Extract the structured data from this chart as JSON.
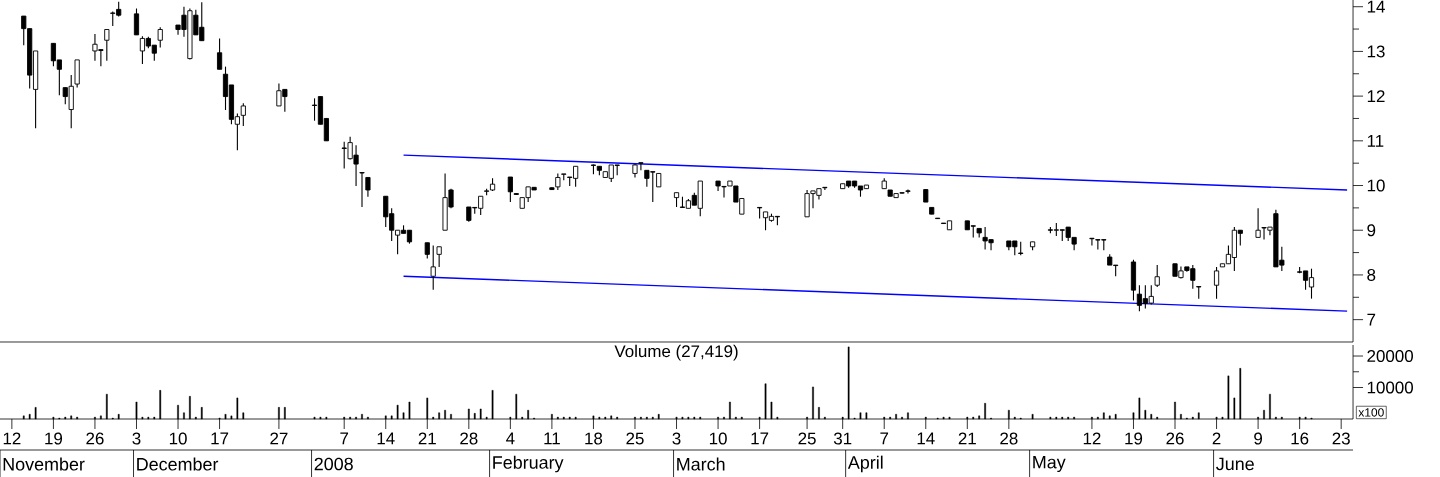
{
  "chart_data": [
    {
      "type": "candlestick",
      "x": [
        "2007-11-14",
        "2007-11-15",
        "2007-11-16",
        "2007-11-19",
        "2007-11-20",
        "2007-11-21",
        "2007-11-22",
        "2007-11-23",
        "2007-11-26",
        "2007-11-27",
        "2007-11-28",
        "2007-11-29",
        "2007-11-30",
        "2007-12-03",
        "2007-12-04",
        "2007-12-05",
        "2007-12-06",
        "2007-12-07",
        "2007-12-10",
        "2007-12-11",
        "2007-12-12",
        "2007-12-13",
        "2007-12-14",
        "2007-12-17",
        "2007-12-18",
        "2007-12-19",
        "2007-12-20",
        "2007-12-21",
        "2007-12-27",
        "2007-12-28",
        "2008-01-02",
        "2008-01-03",
        "2008-01-04",
        "2008-01-07",
        "2008-01-08",
        "2008-01-09",
        "2008-01-10",
        "2008-01-11",
        "2008-01-14",
        "2008-01-15",
        "2008-01-16",
        "2008-01-17",
        "2008-01-18",
        "2008-01-21",
        "2008-01-22",
        "2008-01-23",
        "2008-01-24",
        "2008-01-25",
        "2008-01-28",
        "2008-01-29",
        "2008-01-30",
        "2008-01-31",
        "2008-02-01",
        "2008-02-04",
        "2008-02-05",
        "2008-02-06",
        "2008-02-07",
        "2008-02-08",
        "2008-02-11",
        "2008-02-12",
        "2008-02-13",
        "2008-02-14",
        "2008-02-15",
        "2008-02-18",
        "2008-02-19",
        "2008-02-20",
        "2008-02-21",
        "2008-02-22",
        "2008-02-25",
        "2008-02-26",
        "2008-02-27",
        "2008-02-28",
        "2008-02-29",
        "2008-03-03",
        "2008-03-04",
        "2008-03-05",
        "2008-03-06",
        "2008-03-07",
        "2008-03-10",
        "2008-03-11",
        "2008-03-12",
        "2008-03-13",
        "2008-03-14",
        "2008-03-17",
        "2008-03-18",
        "2008-03-19",
        "2008-03-20",
        "2008-03-25",
        "2008-03-26",
        "2008-03-27",
        "2008-03-28",
        "2008-03-31",
        "2008-04-01",
        "2008-04-02",
        "2008-04-03",
        "2008-04-04",
        "2008-04-07",
        "2008-04-08",
        "2008-04-09",
        "2008-04-10",
        "2008-04-11",
        "2008-04-14",
        "2008-04-15",
        "2008-04-16",
        "2008-04-17",
        "2008-04-18",
        "2008-04-21",
        "2008-04-22",
        "2008-04-23",
        "2008-04-24",
        "2008-04-25",
        "2008-04-28",
        "2008-04-29",
        "2008-04-30",
        "2008-05-02",
        "2008-05-05",
        "2008-05-06",
        "2008-05-07",
        "2008-05-08",
        "2008-05-09",
        "2008-05-12",
        "2008-05-13",
        "2008-05-14",
        "2008-05-15",
        "2008-05-16",
        "2008-05-19",
        "2008-05-20",
        "2008-05-21",
        "2008-05-22",
        "2008-05-23",
        "2008-05-26",
        "2008-05-27",
        "2008-05-28",
        "2008-05-29",
        "2008-05-30",
        "2008-06-02",
        "2008-06-03",
        "2008-06-04",
        "2008-06-05",
        "2008-06-06",
        "2008-06-09",
        "2008-06-10",
        "2008-06-11",
        "2008-06-12",
        "2008-06-13",
        "2008-06-16",
        "2008-06-17",
        "2008-06-18"
      ],
      "ohlc": [
        [
          13.79,
          13.79,
          13.14,
          13.51
        ],
        [
          13.51,
          13.51,
          12.17,
          12.47
        ],
        [
          12.15,
          13.01,
          11.28,
          13.01
        ],
        [
          13.18,
          13.18,
          12.67,
          12.79
        ],
        [
          12.81,
          12.81,
          12.02,
          12.6
        ],
        [
          12.19,
          12.19,
          11.82,
          11.99
        ],
        [
          11.7,
          12.47,
          11.28,
          12.22
        ],
        [
          12.27,
          12.81,
          12.19,
          12.81
        ],
        [
          13.01,
          13.39,
          12.79,
          13.16
        ],
        [
          13.04,
          13.04,
          12.67,
          13.02
        ],
        [
          13.25,
          13.49,
          12.79,
          13.49
        ],
        [
          13.85,
          13.89,
          13.57,
          13.86
        ],
        [
          13.94,
          14.11,
          13.78,
          13.81
        ],
        [
          13.84,
          13.96,
          13.37,
          13.37
        ],
        [
          13.01,
          13.34,
          12.72,
          13.29
        ],
        [
          13.29,
          13.33,
          13.07,
          13.12
        ],
        [
          13.14,
          13.14,
          12.79,
          12.96
        ],
        [
          13.25,
          13.54,
          13.09,
          13.49
        ],
        [
          13.59,
          13.59,
          13.37,
          13.49
        ],
        [
          13.81,
          14.0,
          13.33,
          13.49
        ],
        [
          12.84,
          13.96,
          12.82,
          13.91
        ],
        [
          13.81,
          13.93,
          13.37,
          13.37
        ],
        [
          13.54,
          14.1,
          13.24,
          13.24
        ],
        [
          12.97,
          13.29,
          12.6,
          12.6
        ],
        [
          12.49,
          12.66,
          11.69,
          11.99
        ],
        [
          12.25,
          12.25,
          11.37,
          11.48
        ],
        [
          11.37,
          11.61,
          10.79,
          11.54
        ],
        [
          11.57,
          11.84,
          11.33,
          11.78
        ],
        [
          11.78,
          12.28,
          11.78,
          12.12
        ],
        [
          12.15,
          12.15,
          11.65,
          11.99
        ],
        [
          11.8,
          11.95,
          11.45,
          11.79
        ],
        [
          11.99,
          11.99,
          11.37,
          11.37
        ],
        [
          11.5,
          11.5,
          11.0,
          11.0
        ],
        [
          10.84,
          10.98,
          10.38,
          10.83
        ],
        [
          10.6,
          11.09,
          10.58,
          10.96
        ],
        [
          10.68,
          10.9,
          9.99,
          10.48
        ],
        [
          10.29,
          10.29,
          9.52,
          10.28
        ],
        [
          10.18,
          10.18,
          9.75,
          9.9
        ],
        [
          9.76,
          9.76,
          9.07,
          9.3
        ],
        [
          9.37,
          9.49,
          8.76,
          9.0
        ],
        [
          8.89,
          9.0,
          8.46,
          9.0
        ],
        [
          9.0,
          9.11,
          8.93,
          8.93
        ],
        [
          9.0,
          9.0,
          8.7,
          8.74
        ],
        [
          8.72,
          8.72,
          8.37,
          8.46
        ],
        [
          7.97,
          8.66,
          7.67,
          8.18
        ],
        [
          8.46,
          8.63,
          8.18,
          8.63
        ],
        [
          9.0,
          10.27,
          9.0,
          9.73
        ],
        [
          9.9,
          9.93,
          9.49,
          9.52
        ],
        [
          9.52,
          9.52,
          9.19,
          9.22
        ],
        [
          9.51,
          9.52,
          9.37,
          9.5
        ],
        [
          9.49,
          9.76,
          9.34,
          9.76
        ],
        [
          9.87,
          9.93,
          9.78,
          9.88
        ],
        [
          9.9,
          10.16,
          9.88,
          10.03
        ],
        [
          10.19,
          10.19,
          9.63,
          9.86
        ],
        [
          9.82,
          9.83,
          9.79,
          9.8
        ],
        [
          9.49,
          9.73,
          9.49,
          9.73
        ],
        [
          9.73,
          9.97,
          9.63,
          9.97
        ],
        [
          9.96,
          9.96,
          9.9,
          9.9
        ],
        [
          9.95,
          9.96,
          9.9,
          9.91
        ],
        [
          9.97,
          10.27,
          9.9,
          10.18
        ],
        [
          10.25,
          10.26,
          10.12,
          10.26
        ],
        [
          10.19,
          10.19,
          9.99,
          10.18
        ],
        [
          10.16,
          10.43,
          9.97,
          10.43
        ],
        [
          10.46,
          10.47,
          10.25,
          10.45
        ],
        [
          10.43,
          10.43,
          10.23,
          10.34
        ],
        [
          10.18,
          10.31,
          10.18,
          10.31
        ],
        [
          10.16,
          10.46,
          10.08,
          10.46
        ],
        [
          10.46,
          10.46,
          10.23,
          10.45
        ],
        [
          10.27,
          10.48,
          10.18,
          10.46
        ],
        [
          10.51,
          10.51,
          10.34,
          10.5
        ],
        [
          10.34,
          10.34,
          9.97,
          10.16
        ],
        [
          10.31,
          10.31,
          9.63,
          10.3
        ],
        [
          9.97,
          10.27,
          9.97,
          10.27
        ],
        [
          9.73,
          9.84,
          9.52,
          9.84
        ],
        [
          9.52,
          9.75,
          9.51,
          9.51
        ],
        [
          9.49,
          9.7,
          9.49,
          9.66
        ],
        [
          9.78,
          9.84,
          9.56,
          9.56
        ],
        [
          9.49,
          10.1,
          9.31,
          10.1
        ],
        [
          10.1,
          10.1,
          9.88,
          9.99
        ],
        [
          9.98,
          9.98,
          9.73,
          9.97
        ],
        [
          9.99,
          10.1,
          9.99,
          10.1
        ],
        [
          9.99,
          9.99,
          9.63,
          9.63
        ],
        [
          9.36,
          9.71,
          9.36,
          9.71
        ],
        [
          9.51,
          9.51,
          9.26,
          9.5
        ],
        [
          9.28,
          9.41,
          9.0,
          9.41
        ],
        [
          9.22,
          9.37,
          9.19,
          9.31
        ],
        [
          9.31,
          9.31,
          9.11,
          9.3
        ],
        [
          9.3,
          9.9,
          9.3,
          9.82
        ],
        [
          9.82,
          9.88,
          9.49,
          9.88
        ],
        [
          9.78,
          9.93,
          9.69,
          9.93
        ],
        [
          9.96,
          9.96,
          9.9,
          9.95
        ],
        [
          9.93,
          10.04,
          9.93,
          10.04
        ],
        [
          10.1,
          10.1,
          9.95,
          9.99
        ],
        [
          10.1,
          10.1,
          9.95,
          9.99
        ],
        [
          9.99,
          9.99,
          9.75,
          9.9
        ],
        [
          9.93,
          10.01,
          9.93,
          10.01
        ],
        [
          9.93,
          10.16,
          9.93,
          10.1
        ],
        [
          9.9,
          9.9,
          9.76,
          9.76
        ],
        [
          9.73,
          9.82,
          9.73,
          9.82
        ],
        [
          9.84,
          9.84,
          9.82,
          9.83
        ],
        [
          9.88,
          9.91,
          9.82,
          9.87
        ],
        [
          9.91,
          9.91,
          9.63,
          9.63
        ],
        [
          9.51,
          9.51,
          9.36,
          9.36
        ],
        [
          9.27,
          9.27,
          9.25,
          9.26
        ],
        [
          9.16,
          9.16,
          9.14,
          9.15
        ],
        [
          9.01,
          9.21,
          9.01,
          9.21
        ],
        [
          9.21,
          9.21,
          9.01,
          9.01
        ],
        [
          9.1,
          9.1,
          8.84,
          9.09
        ],
        [
          9.04,
          9.04,
          8.84,
          8.94
        ],
        [
          8.84,
          9.07,
          8.57,
          8.76
        ],
        [
          8.79,
          8.79,
          8.55,
          8.72
        ],
        [
          8.76,
          8.76,
          8.55,
          8.63
        ],
        [
          8.76,
          8.76,
          8.44,
          8.63
        ],
        [
          8.49,
          8.74,
          8.44,
          8.48
        ],
        [
          8.63,
          8.74,
          8.55,
          8.74
        ],
        [
          9.01,
          9.07,
          8.93,
          9.0
        ],
        [
          9.0,
          9.16,
          8.87,
          9.01
        ],
        [
          9.01,
          9.01,
          8.76,
          9.0
        ],
        [
          9.07,
          9.07,
          8.76,
          8.84
        ],
        [
          8.84,
          8.84,
          8.55,
          8.69
        ],
        [
          8.82,
          8.82,
          8.66,
          8.81
        ],
        [
          8.79,
          8.79,
          8.57,
          8.78
        ],
        [
          8.79,
          8.79,
          8.55,
          8.78
        ],
        [
          8.4,
          8.46,
          8.22,
          8.22
        ],
        [
          8.22,
          8.22,
          7.97,
          8.21
        ],
        [
          8.29,
          8.34,
          7.43,
          7.66
        ],
        [
          7.57,
          7.77,
          7.19,
          7.32
        ],
        [
          7.47,
          7.77,
          7.25,
          7.36
        ],
        [
          7.37,
          7.77,
          7.34,
          7.52
        ],
        [
          7.77,
          8.22,
          7.73,
          7.96
        ],
        [
          8.25,
          8.25,
          7.97,
          7.97
        ],
        [
          7.94,
          8.19,
          7.92,
          8.09
        ],
        [
          8.18,
          8.18,
          8.07,
          8.1
        ],
        [
          8.14,
          8.22,
          7.69,
          7.88
        ],
        [
          7.74,
          7.74,
          7.47,
          7.73
        ],
        [
          7.77,
          8.18,
          7.47,
          8.09
        ],
        [
          8.18,
          8.25,
          8.18,
          8.25
        ],
        [
          8.25,
          8.66,
          8.25,
          8.46
        ],
        [
          8.39,
          9.07,
          8.09,
          9.0
        ],
        [
          9.0,
          9.0,
          8.66,
          8.93
        ],
        [
          8.84,
          9.49,
          8.84,
          9.0
        ],
        [
          9.06,
          9.06,
          8.79,
          9.05
        ],
        [
          9.0,
          9.07,
          8.89,
          9.07
        ],
        [
          9.37,
          9.46,
          8.18,
          8.18
        ],
        [
          8.33,
          8.63,
          8.09,
          8.22
        ],
        [
          8.07,
          8.18,
          8.04,
          8.06
        ],
        [
          8.09,
          8.09,
          7.67,
          7.88
        ],
        [
          7.73,
          8.14,
          7.47,
          7.94
        ]
      ],
      "series": [
        {
          "type": "line",
          "color": "#0000ff",
          "x": [
            "2008-01-17",
            "2008-06-24"
          ],
          "values": [
            10.68,
            9.9
          ]
        },
        {
          "type": "line",
          "color": "#0000ff",
          "x": [
            "2008-01-17",
            "2008-06-24"
          ],
          "values": [
            7.97,
            7.19
          ]
        }
      ],
      "xlim": [
        "2007-11-10",
        "2008-06-25"
      ],
      "ylim": [
        6.5,
        14.15
      ],
      "yticks": [
        7,
        8,
        9,
        10,
        11,
        12,
        13,
        14
      ],
      "tick_labels": "y"
    },
    {
      "type": "bar",
      "title": "Volume (27,419)",
      "color": "#000000",
      "x": [
        "2007-11-14",
        "2007-11-15",
        "2007-11-16",
        "2007-11-19",
        "2007-11-20",
        "2007-11-21",
        "2007-11-22",
        "2007-11-23",
        "2007-11-26",
        "2007-11-27",
        "2007-11-28",
        "2007-11-29",
        "2007-11-30",
        "2007-12-03",
        "2007-12-04",
        "2007-12-05",
        "2007-12-06",
        "2007-12-07",
        "2007-12-10",
        "2007-12-11",
        "2007-12-12",
        "2007-12-13",
        "2007-12-14",
        "2007-12-17",
        "2007-12-18",
        "2007-12-19",
        "2007-12-20",
        "2007-12-21",
        "2007-12-27",
        "2007-12-28",
        "2008-01-02",
        "2008-01-03",
        "2008-01-04",
        "2008-01-07",
        "2008-01-08",
        "2008-01-09",
        "2008-01-10",
        "2008-01-11",
        "2008-01-14",
        "2008-01-15",
        "2008-01-16",
        "2008-01-17",
        "2008-01-18",
        "2008-01-21",
        "2008-01-22",
        "2008-01-23",
        "2008-01-24",
        "2008-01-25",
        "2008-01-28",
        "2008-01-29",
        "2008-01-30",
        "2008-01-31",
        "2008-02-01",
        "2008-02-04",
        "2008-02-05",
        "2008-02-06",
        "2008-02-07",
        "2008-02-08",
        "2008-02-11",
        "2008-02-12",
        "2008-02-13",
        "2008-02-14",
        "2008-02-15",
        "2008-02-18",
        "2008-02-19",
        "2008-02-20",
        "2008-02-21",
        "2008-02-22",
        "2008-02-25",
        "2008-02-26",
        "2008-02-27",
        "2008-02-28",
        "2008-02-29",
        "2008-03-03",
        "2008-03-04",
        "2008-03-05",
        "2008-03-06",
        "2008-03-07",
        "2008-03-10",
        "2008-03-11",
        "2008-03-12",
        "2008-03-13",
        "2008-03-14",
        "2008-03-17",
        "2008-03-18",
        "2008-03-19",
        "2008-03-20",
        "2008-03-25",
        "2008-03-26",
        "2008-03-27",
        "2008-03-28",
        "2008-03-31",
        "2008-04-01",
        "2008-04-02",
        "2008-04-03",
        "2008-04-04",
        "2008-04-07",
        "2008-04-08",
        "2008-04-09",
        "2008-04-10",
        "2008-04-11",
        "2008-04-14",
        "2008-04-15",
        "2008-04-16",
        "2008-04-17",
        "2008-04-18",
        "2008-04-21",
        "2008-04-22",
        "2008-04-23",
        "2008-04-24",
        "2008-04-25",
        "2008-04-28",
        "2008-04-29",
        "2008-04-30",
        "2008-05-02",
        "2008-05-05",
        "2008-05-06",
        "2008-05-07",
        "2008-05-08",
        "2008-05-09",
        "2008-05-12",
        "2008-05-13",
        "2008-05-14",
        "2008-05-15",
        "2008-05-16",
        "2008-05-19",
        "2008-05-20",
        "2008-05-21",
        "2008-05-22",
        "2008-05-23",
        "2008-05-26",
        "2008-05-27",
        "2008-05-28",
        "2008-05-29",
        "2008-05-30",
        "2008-06-02",
        "2008-06-03",
        "2008-06-04",
        "2008-06-05",
        "2008-06-06",
        "2008-06-09",
        "2008-06-10",
        "2008-06-11",
        "2008-06-12",
        "2008-06-13",
        "2008-06-16",
        "2008-06-17",
        "2008-06-18"
      ],
      "values": [
        1000,
        1500,
        3700,
        600,
        300,
        600,
        1000,
        600,
        600,
        1000,
        7900,
        300,
        1500,
        5400,
        600,
        600,
        600,
        9100,
        4400,
        2000,
        7200,
        600,
        3700,
        300,
        1500,
        1000,
        6700,
        2000,
        3700,
        3700,
        600,
        600,
        600,
        600,
        600,
        600,
        1500,
        600,
        1000,
        1000,
        4400,
        2000,
        5400,
        6700,
        600,
        2000,
        2800,
        1500,
        3200,
        1800,
        3200,
        600,
        9100,
        600,
        7900,
        600,
        2800,
        300,
        1500,
        600,
        600,
        600,
        600,
        1000,
        600,
        600,
        1000,
        600,
        600,
        600,
        600,
        600,
        1500,
        600,
        600,
        600,
        600,
        600,
        600,
        600,
        5400,
        600,
        600,
        600,
        11200,
        5400,
        600,
        600,
        10200,
        3700,
        600,
        600,
        22900,
        300,
        2000,
        2000,
        600,
        600,
        1500,
        600,
        2000,
        600,
        null,
        300,
        600,
        600,
        600,
        600,
        1000,
        5000,
        300,
        2800,
        600,
        300,
        1500,
        600,
        600,
        600,
        600,
        600,
        600,
        600,
        2000,
        1000,
        1500,
        2000,
        6700,
        2800,
        1500,
        600,
        5400,
        1500,
        300,
        600,
        2000,
        600,
        600,
        13700,
        6700,
        16100,
        600,
        2800,
        7900,
        600,
        600,
        600,
        600,
        300
      ],
      "xlim": [
        "2007-11-10",
        "2008-06-25"
      ],
      "ylim": [
        0,
        23500
      ],
      "yticks": [
        10000,
        20000
      ],
      "xticks": [
        {
          "value": "2007-11-12",
          "label": "12"
        },
        {
          "value": "2007-11-19",
          "label": "19"
        },
        {
          "value": "2007-11-26",
          "label": "26"
        },
        {
          "value": "2007-12-03",
          "label": "3"
        },
        {
          "value": "2007-12-10",
          "label": "10"
        },
        {
          "value": "2007-12-17",
          "label": "17"
        },
        {
          "value": "2007-12-27",
          "label": "27"
        },
        {
          "value": "2008-01-07",
          "label": "7"
        },
        {
          "value": "2008-01-14",
          "label": "14"
        },
        {
          "value": "2008-01-21",
          "label": "21"
        },
        {
          "value": "2008-01-28",
          "label": "28"
        },
        {
          "value": "2008-02-04",
          "label": "4"
        },
        {
          "value": "2008-02-11",
          "label": "11"
        },
        {
          "value": "2008-02-18",
          "label": "18"
        },
        {
          "value": "2008-02-25",
          "label": "25"
        },
        {
          "value": "2008-03-03",
          "label": "3"
        },
        {
          "value": "2008-03-10",
          "label": "10"
        },
        {
          "value": "2008-03-17",
          "label": "17"
        },
        {
          "value": "2008-03-25",
          "label": "25"
        },
        {
          "value": "2008-03-31",
          "label": "31"
        },
        {
          "value": "2008-04-07",
          "label": "7"
        },
        {
          "value": "2008-04-14",
          "label": "14"
        },
        {
          "value": "2008-04-21",
          "label": "21"
        },
        {
          "value": "2008-04-28",
          "label": "28"
        },
        {
          "value": "2008-05-12",
          "label": "12"
        },
        {
          "value": "2008-05-19",
          "label": "19"
        },
        {
          "value": "2008-05-26",
          "label": "26"
        },
        {
          "value": "2008-06-02",
          "label": "2"
        },
        {
          "value": "2008-06-09",
          "label": "9"
        },
        {
          "value": "2008-06-16",
          "label": "16"
        },
        {
          "value": "2008-06-23",
          "label": "23"
        }
      ],
      "annotations": [
        "x100",
        "November",
        "December",
        "2008",
        "February",
        "March",
        "April",
        "May",
        "June"
      ]
    }
  ]
}
